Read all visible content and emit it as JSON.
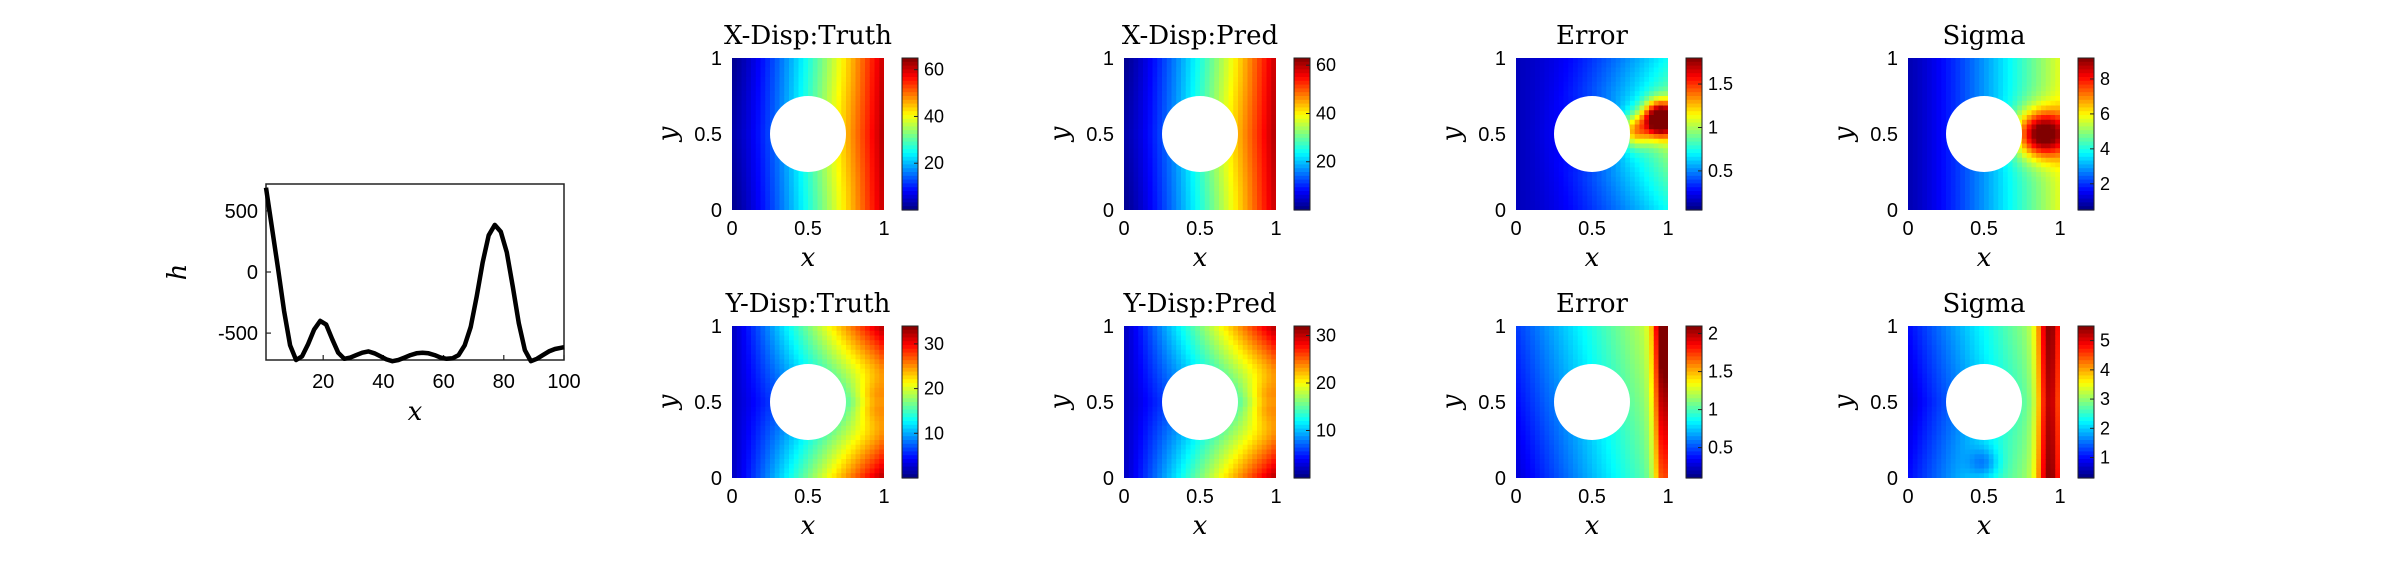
{
  "chart_data": [
    {
      "type": "line",
      "xlabel": "x",
      "ylabel": "h",
      "xlim": [
        1,
        100
      ],
      "ylim": [
        -720,
        720
      ],
      "xticks": [
        "20",
        "40",
        "60",
        "80",
        "100"
      ],
      "yticks": [
        "500",
        "0",
        "-500"
      ],
      "x": [
        1,
        3,
        5,
        7,
        9,
        11,
        13,
        15,
        17,
        19,
        21,
        23,
        25,
        27,
        29,
        31,
        33,
        35,
        37,
        39,
        41,
        43,
        45,
        47,
        49,
        51,
        53,
        55,
        57,
        59,
        61,
        63,
        65,
        67,
        69,
        71,
        73,
        75,
        77,
        79,
        81,
        83,
        85,
        87,
        89,
        91,
        93,
        95,
        97,
        99,
        100
      ],
      "series": [
        {
          "color": "#000000",
          "values": [
            690,
            360,
            30,
            -320,
            -600,
            -720,
            -690,
            -590,
            -470,
            -400,
            -430,
            -550,
            -660,
            -710,
            -700,
            -680,
            -660,
            -650,
            -665,
            -690,
            -715,
            -730,
            -720,
            -700,
            -680,
            -665,
            -660,
            -665,
            -680,
            -700,
            -710,
            -705,
            -680,
            -600,
            -450,
            -200,
            80,
            300,
            385,
            330,
            160,
            -120,
            -420,
            -640,
            -730,
            -710,
            -680,
            -650,
            -630,
            -620,
            -615
          ]
        }
      ]
    },
    {
      "type": "heatmap",
      "title": "X-Disp:Truth",
      "xlabel": "x",
      "ylabel": "y",
      "xlim": [
        0,
        1
      ],
      "ylim": [
        0,
        1
      ],
      "xticks": [
        "0",
        "0.5",
        "1"
      ],
      "yticks": [
        "0",
        "0.5",
        "1"
      ],
      "colormap": "jet",
      "colorbar": {
        "min": 0,
        "max": 65,
        "ticks": [
          "20",
          "40",
          "60"
        ]
      },
      "field": "x-displacement",
      "hole": {
        "cx": 0.5,
        "cy": 0.5,
        "r": 0.25
      }
    },
    {
      "type": "heatmap",
      "title": "X-Disp:Pred",
      "xlabel": "x",
      "ylabel": "y",
      "xlim": [
        0,
        1
      ],
      "ylim": [
        0,
        1
      ],
      "xticks": [
        "0",
        "0.5",
        "1"
      ],
      "yticks": [
        "0",
        "0.5",
        "1"
      ],
      "colormap": "jet",
      "colorbar": {
        "min": 0,
        "max": 63,
        "ticks": [
          "20",
          "40",
          "60"
        ]
      },
      "field": "x-displacement",
      "hole": {
        "cx": 0.5,
        "cy": 0.5,
        "r": 0.25
      }
    },
    {
      "type": "heatmap",
      "title": "Error",
      "xlabel": "x",
      "ylabel": "y",
      "xlim": [
        0,
        1
      ],
      "ylim": [
        0,
        1
      ],
      "xticks": [
        "0",
        "0.5",
        "1"
      ],
      "yticks": [
        "0",
        "0.5",
        "1"
      ],
      "colormap": "jet",
      "colorbar": {
        "min": 0.05,
        "max": 1.8,
        "ticks": [
          "0.5",
          "1",
          "1.5"
        ]
      },
      "field": "x-error",
      "hole": {
        "cx": 0.5,
        "cy": 0.5,
        "r": 0.25
      }
    },
    {
      "type": "heatmap",
      "title": "Sigma",
      "xlabel": "x",
      "ylabel": "y",
      "xlim": [
        0,
        1
      ],
      "ylim": [
        0,
        1
      ],
      "xticks": [
        "0",
        "0.5",
        "1"
      ],
      "yticks": [
        "0",
        "0.5",
        "1"
      ],
      "colormap": "jet",
      "colorbar": {
        "min": 0.5,
        "max": 9.2,
        "ticks": [
          "2",
          "4",
          "6",
          "8"
        ]
      },
      "field": "x-sigma",
      "hole": {
        "cx": 0.5,
        "cy": 0.5,
        "r": 0.25
      }
    },
    {
      "type": "heatmap",
      "title": "Y-Disp:Truth",
      "xlabel": "x",
      "ylabel": "y",
      "xlim": [
        0,
        1
      ],
      "ylim": [
        0,
        1
      ],
      "xticks": [
        "0",
        "0.5",
        "1"
      ],
      "yticks": [
        "0",
        "0.5",
        "1"
      ],
      "colormap": "jet",
      "colorbar": {
        "min": 0,
        "max": 34,
        "ticks": [
          "10",
          "20",
          "30"
        ]
      },
      "field": "y-displacement",
      "hole": {
        "cx": 0.5,
        "cy": 0.5,
        "r": 0.25
      }
    },
    {
      "type": "heatmap",
      "title": "Y-Disp:Pred",
      "xlabel": "x",
      "ylabel": "y",
      "xlim": [
        0,
        1
      ],
      "ylim": [
        0,
        1
      ],
      "xticks": [
        "0",
        "0.5",
        "1"
      ],
      "yticks": [
        "0",
        "0.5",
        "1"
      ],
      "colormap": "jet",
      "colorbar": {
        "min": 0,
        "max": 32,
        "ticks": [
          "10",
          "20",
          "30"
        ]
      },
      "field": "y-displacement",
      "hole": {
        "cx": 0.5,
        "cy": 0.5,
        "r": 0.25
      }
    },
    {
      "type": "heatmap",
      "title": "Error",
      "xlabel": "x",
      "ylabel": "y",
      "xlim": [
        0,
        1
      ],
      "ylim": [
        0,
        1
      ],
      "xticks": [
        "0",
        "0.5",
        "1"
      ],
      "yticks": [
        "0",
        "0.5",
        "1"
      ],
      "colormap": "jet",
      "colorbar": {
        "min": 0.1,
        "max": 2.1,
        "ticks": [
          "0.5",
          "1",
          "1.5",
          "2"
        ]
      },
      "field": "y-error",
      "hole": {
        "cx": 0.5,
        "cy": 0.5,
        "r": 0.25
      }
    },
    {
      "type": "heatmap",
      "title": "Sigma",
      "xlabel": "x",
      "ylabel": "y",
      "xlim": [
        0,
        1
      ],
      "ylim": [
        0,
        1
      ],
      "xticks": [
        "0",
        "0.5",
        "1"
      ],
      "yticks": [
        "0",
        "0.5",
        "1"
      ],
      "colormap": "jet",
      "colorbar": {
        "min": 0.3,
        "max": 5.5,
        "ticks": [
          "1",
          "2",
          "3",
          "4",
          "5"
        ]
      },
      "field": "y-sigma",
      "hole": {
        "cx": 0.5,
        "cy": 0.5,
        "r": 0.25
      }
    }
  ]
}
